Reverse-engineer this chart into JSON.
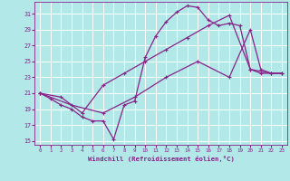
{
  "xlabel": "Windchill (Refroidissement éolien,°C)",
  "xlim": [
    -0.5,
    23.5
  ],
  "ylim": [
    14.5,
    32.5
  ],
  "yticks": [
    15,
    17,
    19,
    21,
    23,
    25,
    27,
    29,
    31
  ],
  "xticks": [
    0,
    1,
    2,
    3,
    4,
    5,
    6,
    7,
    8,
    9,
    10,
    11,
    12,
    13,
    14,
    15,
    16,
    17,
    18,
    19,
    20,
    21,
    22,
    23
  ],
  "bg_color": "#b2e8e8",
  "grid_color": "#c8eaea",
  "line_color": "#882288",
  "line1_x": [
    0,
    1,
    2,
    3,
    4,
    5,
    6,
    7,
    8,
    9,
    10,
    11,
    12,
    13,
    14,
    15,
    16,
    17,
    18,
    19,
    20,
    21,
    22,
    23
  ],
  "line1_y": [
    21,
    20.3,
    19.5,
    19.0,
    18.0,
    17.5,
    17.5,
    15.2,
    19.5,
    20.0,
    25.5,
    28.2,
    30.0,
    31.2,
    32.0,
    31.8,
    30.2,
    29.5,
    29.8,
    29.5,
    24.0,
    23.5,
    23.5,
    23.5
  ],
  "line2_x": [
    0,
    2,
    4,
    6,
    8,
    10,
    12,
    14,
    16,
    18,
    20,
    22,
    23
  ],
  "line2_y": [
    21,
    20.5,
    18.5,
    22.0,
    23.5,
    25.0,
    26.5,
    28.0,
    29.5,
    30.8,
    24.0,
    23.5,
    23.5
  ],
  "line3_x": [
    0,
    3,
    6,
    9,
    12,
    15,
    18,
    20,
    21,
    22,
    23
  ],
  "line3_y": [
    21,
    19.5,
    18.5,
    20.5,
    23.0,
    25.0,
    23.0,
    29.0,
    24.0,
    23.5,
    23.5
  ]
}
